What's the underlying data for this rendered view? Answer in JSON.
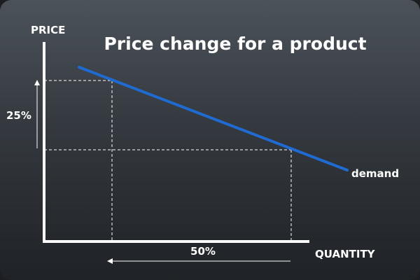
{
  "diagram": {
    "title": "Price change for a product",
    "y_axis_label": "PRICE",
    "x_axis_label": "QUANTITY",
    "price_change": "25%",
    "quantity_change": "50%",
    "curve_label": "demand",
    "curve_color": "#1f6bd1",
    "axis_color": "#ffffff"
  }
}
